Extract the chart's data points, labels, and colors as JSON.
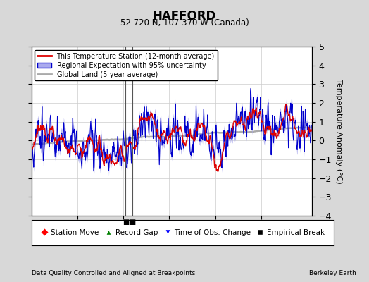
{
  "title": "HAFFORD",
  "subtitle": "52.720 N, 107.370 W (Canada)",
  "ylabel": "Temperature Anomaly (°C)",
  "xlabel_note": "Data Quality Controlled and Aligned at Breakpoints",
  "credit": "Berkeley Earth",
  "ylim": [
    -4,
    5
  ],
  "xlim": [
    1950,
    2011
  ],
  "xticks": [
    1960,
    1970,
    1980,
    1990,
    2000
  ],
  "yticks": [
    -4,
    -3,
    -2,
    -1,
    0,
    1,
    2,
    3,
    4,
    5
  ],
  "background_color": "#d8d8d8",
  "plot_bg_color": "#ffffff",
  "grid_color": "#cccccc",
  "station_color": "#dd0000",
  "regional_color": "#0000cc",
  "regional_fill_color": "#aaaaee",
  "global_color": "#aaaaaa",
  "empirical_break_years": [
    1970.5,
    1972.0
  ],
  "legend_labels": [
    "This Temperature Station (12-month average)",
    "Regional Expectation with 95% uncertainty",
    "Global Land (5-year average)"
  ],
  "bottom_legend_labels": [
    "Station Move",
    "Record Gap",
    "Time of Obs. Change",
    "Empirical Break"
  ]
}
